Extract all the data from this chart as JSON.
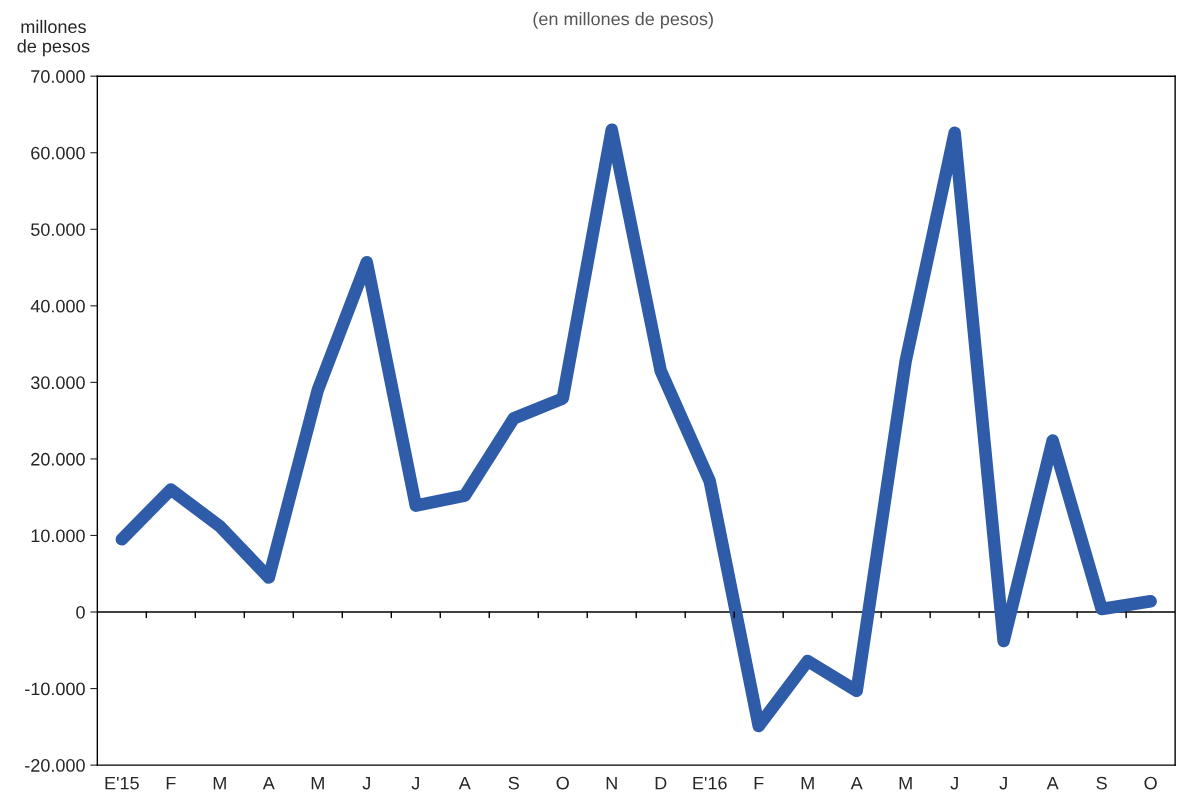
{
  "chart_data": {
    "type": "line",
    "subtitle": "(en millones de pesos)",
    "ylabel": "millones\nde pesos",
    "categories": [
      "E'15",
      "F",
      "M",
      "A",
      "M",
      "J",
      "J",
      "A",
      "S",
      "O",
      "N",
      "D",
      "E'16",
      "F",
      "M",
      "A",
      "M",
      "J",
      "J",
      "A",
      "S",
      "O"
    ],
    "series": [
      {
        "color": "#2f5ca8",
        "values": [
          9500,
          16000,
          11200,
          4500,
          29000,
          45700,
          13900,
          15200,
          25300,
          27900,
          63000,
          31500,
          17100,
          -14900,
          -6400,
          -10300,
          32800,
          62600,
          -3800,
          22400,
          400,
          1400
        ]
      }
    ],
    "ylim": [
      -20000,
      70000
    ],
    "yticks": [
      {
        "value": -20000,
        "label": "-20.000"
      },
      {
        "value": -10000,
        "label": "-10.000"
      },
      0,
      {
        "value": 10000,
        "label": "10.000"
      },
      {
        "value": 20000,
        "label": "20.000"
      },
      {
        "value": 30000,
        "label": "30.000"
      },
      {
        "value": 40000,
        "label": "40.000"
      },
      {
        "value": 50000,
        "label": "50.000"
      },
      {
        "value": 60000,
        "label": "60.000"
      },
      {
        "value": 70000,
        "label": "70.000"
      }
    ],
    "ref_lines": [
      {
        "axis": "y",
        "value": 0,
        "color": "#000000"
      }
    ],
    "grid": false,
    "line_style": "solid"
  }
}
